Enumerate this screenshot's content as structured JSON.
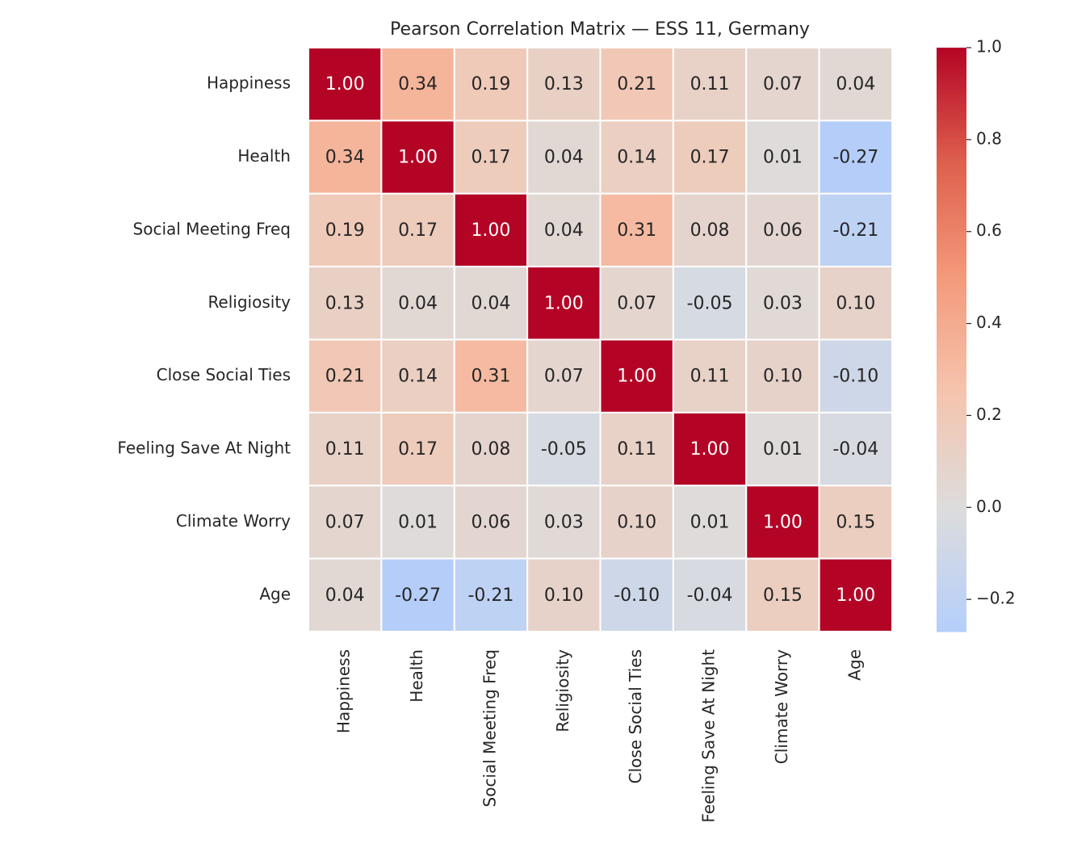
{
  "chart_data": {
    "type": "heatmap",
    "title": "Pearson Correlation Matrix — ESS 11, Germany",
    "categories": [
      "Happiness",
      "Health",
      "Social Meeting Freq",
      "Religiosity",
      "Close Social Ties",
      "Feeling Save At Night",
      "Climate Worry",
      "Age"
    ],
    "values": [
      [
        1.0,
        0.34,
        0.19,
        0.13,
        0.21,
        0.11,
        0.07,
        0.04
      ],
      [
        0.34,
        1.0,
        0.17,
        0.04,
        0.14,
        0.17,
        0.01,
        -0.27
      ],
      [
        0.19,
        0.17,
        1.0,
        0.04,
        0.31,
        0.08,
        0.06,
        -0.21
      ],
      [
        0.13,
        0.04,
        0.04,
        1.0,
        0.07,
        -0.05,
        0.03,
        0.1
      ],
      [
        0.21,
        0.14,
        0.31,
        0.07,
        1.0,
        0.11,
        0.1,
        -0.1
      ],
      [
        0.11,
        0.17,
        0.08,
        -0.05,
        0.11,
        1.0,
        0.01,
        -0.04
      ],
      [
        0.07,
        0.01,
        0.06,
        0.03,
        0.1,
        0.01,
        1.0,
        0.15
      ],
      [
        0.04,
        -0.27,
        -0.21,
        0.1,
        -0.1,
        -0.04,
        0.15,
        1.0
      ]
    ],
    "value_labels": [
      [
        "1.00",
        "0.34",
        "0.19",
        "0.13",
        "0.21",
        "0.11",
        "0.07",
        "0.04"
      ],
      [
        "0.34",
        "1.00",
        "0.17",
        "0.04",
        "0.14",
        "0.17",
        "0.01",
        "-0.27"
      ],
      [
        "0.19",
        "0.17",
        "1.00",
        "0.04",
        "0.31",
        "0.08",
        "0.06",
        "-0.21"
      ],
      [
        "0.13",
        "0.04",
        "0.04",
        "1.00",
        "0.07",
        "-0.05",
        "0.03",
        "0.10"
      ],
      [
        "0.21",
        "0.14",
        "0.31",
        "0.07",
        "1.00",
        "0.11",
        "0.10",
        "-0.10"
      ],
      [
        "0.11",
        "0.17",
        "0.08",
        "-0.05",
        "0.11",
        "1.00",
        "0.01",
        "-0.04"
      ],
      [
        "0.07",
        "0.01",
        "0.06",
        "0.03",
        "0.10",
        "0.01",
        "1.00",
        "0.15"
      ],
      [
        "0.04",
        "-0.27",
        "-0.21",
        "0.10",
        "-0.10",
        "-0.04",
        "0.15",
        "1.00"
      ]
    ],
    "colormap": "coolwarm",
    "colormap_center": 0,
    "colorbar_lim": [
      -0.27,
      1.0
    ],
    "colorbar_ticks": [
      {
        "value": -0.2,
        "label": "−0.2"
      },
      {
        "value": 0,
        "label": "0.0"
      },
      0.2,
      0.4,
      0.6,
      0.8,
      {
        "value": 1.0,
        "label": "1.0"
      }
    ]
  }
}
